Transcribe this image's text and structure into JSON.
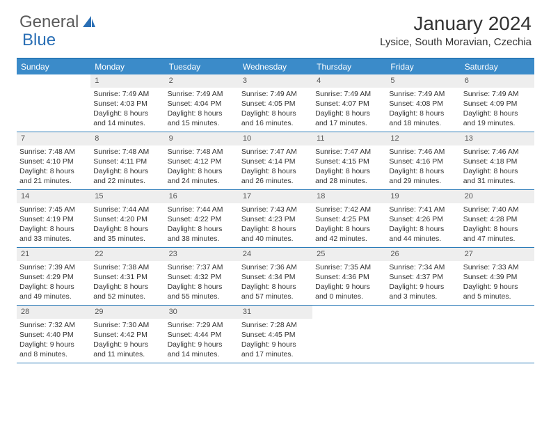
{
  "logo": {
    "text1": "General",
    "text2": "Blue"
  },
  "title": "January 2024",
  "location": "Lysice, South Moravian, Czechia",
  "colors": {
    "header_bg": "#3b8bc9",
    "border": "#2a7ab8",
    "daynum_bg": "#eeeeee",
    "text": "#333333",
    "logo_gray": "#5a5a5a",
    "logo_blue": "#2a6fb5"
  },
  "weekdays": [
    "Sunday",
    "Monday",
    "Tuesday",
    "Wednesday",
    "Thursday",
    "Friday",
    "Saturday"
  ],
  "weeks": [
    [
      {
        "n": "",
        "lines": []
      },
      {
        "n": "1",
        "lines": [
          "Sunrise: 7:49 AM",
          "Sunset: 4:03 PM",
          "Daylight: 8 hours",
          "and 14 minutes."
        ]
      },
      {
        "n": "2",
        "lines": [
          "Sunrise: 7:49 AM",
          "Sunset: 4:04 PM",
          "Daylight: 8 hours",
          "and 15 minutes."
        ]
      },
      {
        "n": "3",
        "lines": [
          "Sunrise: 7:49 AM",
          "Sunset: 4:05 PM",
          "Daylight: 8 hours",
          "and 16 minutes."
        ]
      },
      {
        "n": "4",
        "lines": [
          "Sunrise: 7:49 AM",
          "Sunset: 4:07 PM",
          "Daylight: 8 hours",
          "and 17 minutes."
        ]
      },
      {
        "n": "5",
        "lines": [
          "Sunrise: 7:49 AM",
          "Sunset: 4:08 PM",
          "Daylight: 8 hours",
          "and 18 minutes."
        ]
      },
      {
        "n": "6",
        "lines": [
          "Sunrise: 7:49 AM",
          "Sunset: 4:09 PM",
          "Daylight: 8 hours",
          "and 19 minutes."
        ]
      }
    ],
    [
      {
        "n": "7",
        "lines": [
          "Sunrise: 7:48 AM",
          "Sunset: 4:10 PM",
          "Daylight: 8 hours",
          "and 21 minutes."
        ]
      },
      {
        "n": "8",
        "lines": [
          "Sunrise: 7:48 AM",
          "Sunset: 4:11 PM",
          "Daylight: 8 hours",
          "and 22 minutes."
        ]
      },
      {
        "n": "9",
        "lines": [
          "Sunrise: 7:48 AM",
          "Sunset: 4:12 PM",
          "Daylight: 8 hours",
          "and 24 minutes."
        ]
      },
      {
        "n": "10",
        "lines": [
          "Sunrise: 7:47 AM",
          "Sunset: 4:14 PM",
          "Daylight: 8 hours",
          "and 26 minutes."
        ]
      },
      {
        "n": "11",
        "lines": [
          "Sunrise: 7:47 AM",
          "Sunset: 4:15 PM",
          "Daylight: 8 hours",
          "and 28 minutes."
        ]
      },
      {
        "n": "12",
        "lines": [
          "Sunrise: 7:46 AM",
          "Sunset: 4:16 PM",
          "Daylight: 8 hours",
          "and 29 minutes."
        ]
      },
      {
        "n": "13",
        "lines": [
          "Sunrise: 7:46 AM",
          "Sunset: 4:18 PM",
          "Daylight: 8 hours",
          "and 31 minutes."
        ]
      }
    ],
    [
      {
        "n": "14",
        "lines": [
          "Sunrise: 7:45 AM",
          "Sunset: 4:19 PM",
          "Daylight: 8 hours",
          "and 33 minutes."
        ]
      },
      {
        "n": "15",
        "lines": [
          "Sunrise: 7:44 AM",
          "Sunset: 4:20 PM",
          "Daylight: 8 hours",
          "and 35 minutes."
        ]
      },
      {
        "n": "16",
        "lines": [
          "Sunrise: 7:44 AM",
          "Sunset: 4:22 PM",
          "Daylight: 8 hours",
          "and 38 minutes."
        ]
      },
      {
        "n": "17",
        "lines": [
          "Sunrise: 7:43 AM",
          "Sunset: 4:23 PM",
          "Daylight: 8 hours",
          "and 40 minutes."
        ]
      },
      {
        "n": "18",
        "lines": [
          "Sunrise: 7:42 AM",
          "Sunset: 4:25 PM",
          "Daylight: 8 hours",
          "and 42 minutes."
        ]
      },
      {
        "n": "19",
        "lines": [
          "Sunrise: 7:41 AM",
          "Sunset: 4:26 PM",
          "Daylight: 8 hours",
          "and 44 minutes."
        ]
      },
      {
        "n": "20",
        "lines": [
          "Sunrise: 7:40 AM",
          "Sunset: 4:28 PM",
          "Daylight: 8 hours",
          "and 47 minutes."
        ]
      }
    ],
    [
      {
        "n": "21",
        "lines": [
          "Sunrise: 7:39 AM",
          "Sunset: 4:29 PM",
          "Daylight: 8 hours",
          "and 49 minutes."
        ]
      },
      {
        "n": "22",
        "lines": [
          "Sunrise: 7:38 AM",
          "Sunset: 4:31 PM",
          "Daylight: 8 hours",
          "and 52 minutes."
        ]
      },
      {
        "n": "23",
        "lines": [
          "Sunrise: 7:37 AM",
          "Sunset: 4:32 PM",
          "Daylight: 8 hours",
          "and 55 minutes."
        ]
      },
      {
        "n": "24",
        "lines": [
          "Sunrise: 7:36 AM",
          "Sunset: 4:34 PM",
          "Daylight: 8 hours",
          "and 57 minutes."
        ]
      },
      {
        "n": "25",
        "lines": [
          "Sunrise: 7:35 AM",
          "Sunset: 4:36 PM",
          "Daylight: 9 hours",
          "and 0 minutes."
        ]
      },
      {
        "n": "26",
        "lines": [
          "Sunrise: 7:34 AM",
          "Sunset: 4:37 PM",
          "Daylight: 9 hours",
          "and 3 minutes."
        ]
      },
      {
        "n": "27",
        "lines": [
          "Sunrise: 7:33 AM",
          "Sunset: 4:39 PM",
          "Daylight: 9 hours",
          "and 5 minutes."
        ]
      }
    ],
    [
      {
        "n": "28",
        "lines": [
          "Sunrise: 7:32 AM",
          "Sunset: 4:40 PM",
          "Daylight: 9 hours",
          "and 8 minutes."
        ]
      },
      {
        "n": "29",
        "lines": [
          "Sunrise: 7:30 AM",
          "Sunset: 4:42 PM",
          "Daylight: 9 hours",
          "and 11 minutes."
        ]
      },
      {
        "n": "30",
        "lines": [
          "Sunrise: 7:29 AM",
          "Sunset: 4:44 PM",
          "Daylight: 9 hours",
          "and 14 minutes."
        ]
      },
      {
        "n": "31",
        "lines": [
          "Sunrise: 7:28 AM",
          "Sunset: 4:45 PM",
          "Daylight: 9 hours",
          "and 17 minutes."
        ]
      },
      {
        "n": "",
        "lines": []
      },
      {
        "n": "",
        "lines": []
      },
      {
        "n": "",
        "lines": []
      }
    ]
  ]
}
